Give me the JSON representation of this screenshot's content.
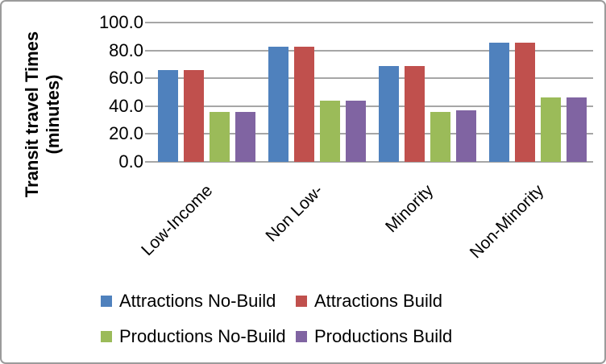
{
  "figure": {
    "y_axis_title_line1": "Transit travel Times",
    "y_axis_title_line2": "(minutes)"
  },
  "chart_data": {
    "type": "bar",
    "title": "",
    "xlabel": "",
    "ylabel": "Transit travel Times (minutes)",
    "categories": [
      "Low-Income",
      "Non Low-",
      "Minority",
      "Non-Minority"
    ],
    "series": [
      {
        "name": "Attractions No-Build",
        "color": "#4F81BD",
        "values": [
          66,
          82.5,
          69,
          85.5
        ]
      },
      {
        "name": "Attractions Build",
        "color": "#C0504D",
        "values": [
          66,
          82.5,
          69,
          85.5
        ]
      },
      {
        "name": "Productions No-Build",
        "color": "#9BBB59",
        "values": [
          36,
          44,
          36,
          46
        ]
      },
      {
        "name": "Productions Build",
        "color": "#8064A2",
        "values": [
          36,
          44,
          37,
          46
        ]
      }
    ],
    "ylim": [
      0,
      100
    ],
    "ytick_step": 20,
    "ytick_labels": [
      "0.0",
      "20.0",
      "40.0",
      "60.0",
      "80.0",
      "100.0"
    ],
    "grid": true,
    "gridline_color": "#A6A6A6",
    "legend_position": "bottom",
    "legend_rows": [
      [
        "Attractions No-Build",
        "Attractions Build"
      ],
      [
        "Productions No-Build",
        "Productions Build"
      ]
    ]
  }
}
